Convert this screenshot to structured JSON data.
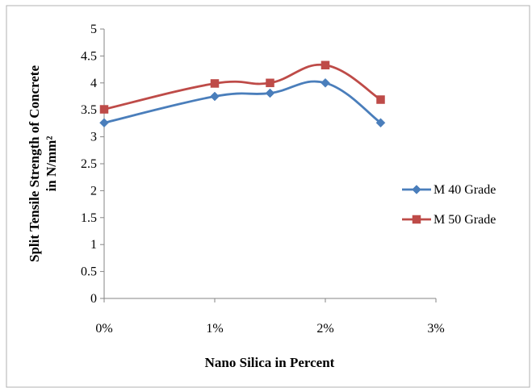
{
  "chart_data": {
    "type": "line",
    "x": [
      "0%",
      "1%",
      "1.5%",
      "2%",
      "2.5%"
    ],
    "x_values": [
      0,
      1,
      1.5,
      2,
      2.5
    ],
    "series": [
      {
        "name": "M 40 Grade",
        "values": [
          3.26,
          3.75,
          3.81,
          4.0,
          3.26
        ],
        "color": "#4a7ebb",
        "marker": "diamond"
      },
      {
        "name": "M 50 Grade",
        "values": [
          3.51,
          3.99,
          4.0,
          4.33,
          3.69
        ],
        "color": "#be4b48",
        "marker": "square"
      }
    ],
    "xticks": [
      "0%",
      "1%",
      "2%",
      "3%"
    ],
    "xtick_values": [
      0,
      1,
      2,
      3
    ],
    "yticks": [
      "0",
      "0.5",
      "1",
      "1.5",
      "2",
      "2.5",
      "3",
      "3.5",
      "4",
      "4.5",
      "5"
    ],
    "xlim": [
      0,
      3
    ],
    "ylim": [
      0,
      5
    ],
    "xlabel": "Nano Silica in Percent",
    "ylabel_line1": "Split Tensile Strength of Concrete",
    "ylabel_line2": "in N/mm²",
    "grid": false,
    "legend_position": "right",
    "smooth": true
  }
}
